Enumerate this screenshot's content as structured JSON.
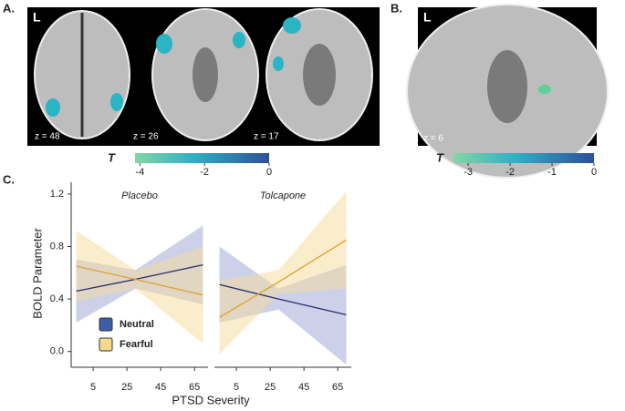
{
  "panels": {
    "a_label": "A.",
    "b_label": "B.",
    "c_label": "C."
  },
  "brain_a": {
    "side": "L",
    "slices": [
      "z = 48",
      "z = 26",
      "z = 17"
    ]
  },
  "colorbar_a": {
    "label": "T",
    "lim": [
      -4.15,
      0
    ],
    "ticks": [
      -4,
      -2,
      0
    ]
  },
  "brain_b": {
    "side": "L",
    "slice": "z = 6"
  },
  "colorbar_b": {
    "label": "T",
    "lim": [
      -3.35,
      0
    ],
    "ticks": [
      -3,
      -2,
      -1,
      0
    ]
  },
  "chart_data": {
    "type": "line",
    "ylabel": "BOLD Parameter",
    "xlabel": "PTSD Severity",
    "xlim": [
      -8,
      73
    ],
    "xticks": [
      5,
      25,
      45,
      65
    ],
    "ylim": [
      -0.12,
      1.3
    ],
    "yticks": [
      {
        "value": 0,
        "label": "0.0"
      },
      0.4,
      0.8,
      1.2
    ],
    "series": [
      {
        "name": "Neutral",
        "color": "#2b2d6e",
        "band_color": "#9aa4d4"
      },
      {
        "name": "Fearful",
        "color": "#e0a030",
        "band_color": "#f6dc9a"
      }
    ],
    "facets": [
      {
        "title": "Placebo",
        "x": [
          -5,
          30,
          70
        ],
        "series": [
          {
            "values": [
              0.46,
              0.55,
              0.66
            ],
            "lower": [
              0.22,
              0.48,
              0.36
            ],
            "upper": [
              0.7,
              0.62,
              0.96
            ]
          },
          {
            "values": [
              0.65,
              0.55,
              0.43
            ],
            "lower": [
              0.38,
              0.48,
              0.06
            ],
            "upper": [
              0.92,
              0.62,
              0.8
            ]
          }
        ]
      },
      {
        "title": "Tolcapone",
        "x": [
          -5,
          30,
          70
        ],
        "series": [
          {
            "values": [
              0.51,
              0.4,
              0.28
            ],
            "lower": [
              0.22,
              0.32,
              -0.1
            ],
            "upper": [
              0.8,
              0.48,
              0.66
            ]
          },
          {
            "values": [
              0.26,
              0.53,
              0.85
            ],
            "lower": [
              -0.02,
              0.44,
              0.48
            ],
            "upper": [
              0.54,
              0.62,
              1.22
            ]
          }
        ]
      }
    ]
  }
}
